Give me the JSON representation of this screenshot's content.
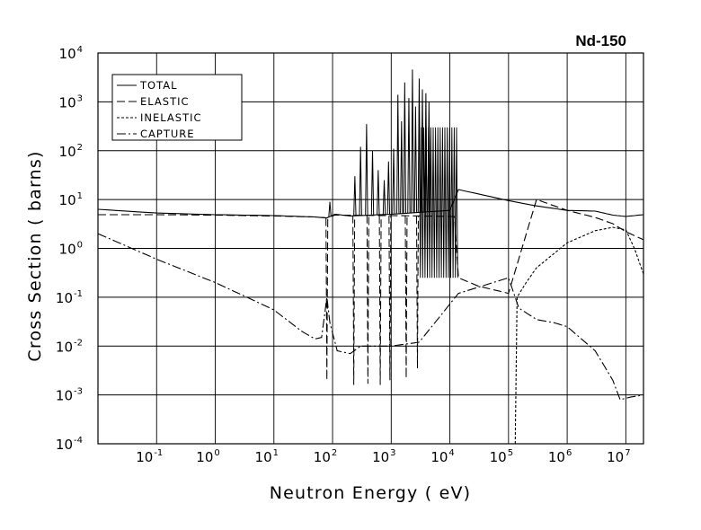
{
  "chart_data": {
    "type": "line",
    "title": "Nd-150",
    "xlabel": "Neutron Energy ( eV)",
    "ylabel": "Cross Section ( barns)",
    "x_scale": "log",
    "y_scale": "log",
    "xlim": [
      0.01,
      20000000
    ],
    "ylim": [
      0.0001,
      10000
    ],
    "grid": true,
    "legend_position": "top-left",
    "x_ticks": [
      {
        "value": 0.1,
        "base": "10",
        "exp": "-1"
      },
      {
        "value": 1,
        "base": "10",
        "exp": "0"
      },
      {
        "value": 10,
        "base": "10",
        "exp": "1"
      },
      {
        "value": 100,
        "base": "10",
        "exp": "2"
      },
      {
        "value": 1000,
        "base": "10",
        "exp": "3"
      },
      {
        "value": 10000,
        "base": "10",
        "exp": "4"
      },
      {
        "value": 100000,
        "base": "10",
        "exp": "5"
      },
      {
        "value": 1000000,
        "base": "10",
        "exp": "6"
      },
      {
        "value": 10000000,
        "base": "10",
        "exp": "7"
      }
    ],
    "y_ticks": [
      {
        "value": 0.0001,
        "base": "10",
        "exp": "-4"
      },
      {
        "value": 0.001,
        "base": "10",
        "exp": "-3"
      },
      {
        "value": 0.01,
        "base": "10",
        "exp": "-2"
      },
      {
        "value": 0.1,
        "base": "10",
        "exp": "-1"
      },
      {
        "value": 1,
        "base": "10",
        "exp": "0"
      },
      {
        "value": 10,
        "base": "10",
        "exp": "1"
      },
      {
        "value": 100,
        "base": "10",
        "exp": "2"
      },
      {
        "value": 1000,
        "base": "10",
        "exp": "3"
      },
      {
        "value": 10000,
        "base": "10",
        "exp": "4"
      }
    ],
    "series": [
      {
        "name": "TOTAL",
        "dash": "solid",
        "points": [
          [
            0.01,
            6.3
          ],
          [
            0.1,
            5.3
          ],
          [
            1,
            4.9
          ],
          [
            10,
            4.7
          ],
          [
            50,
            4.4
          ],
          [
            80,
            4.2
          ],
          [
            110,
            5.0
          ],
          [
            200,
            4.6
          ],
          [
            1000,
            5.0
          ],
          [
            10000,
            6.0
          ],
          [
            14000,
            16
          ],
          [
            100000,
            9.5
          ],
          [
            300000,
            7.4
          ],
          [
            1000000,
            6.0
          ],
          [
            3000000,
            5.8
          ],
          [
            6000000,
            4.8
          ],
          [
            10000000,
            4.5
          ],
          [
            20000000,
            4.9
          ]
        ],
        "resonances": [
          [
            90,
            9
          ],
          [
            240,
            30
          ],
          [
            300,
            120
          ],
          [
            380,
            350
          ],
          [
            480,
            100
          ],
          [
            600,
            40
          ],
          [
            760,
            25
          ],
          [
            900,
            60
          ],
          [
            1100,
            110
          ],
          [
            1300,
            1400
          ],
          [
            1500,
            400
          ],
          [
            1700,
            2500
          ],
          [
            2000,
            1200
          ],
          [
            2300,
            4600
          ],
          [
            2600,
            800
          ],
          [
            3000,
            3000
          ],
          [
            3400,
            1800
          ],
          [
            3900,
            1500
          ],
          [
            4400,
            1000
          ]
        ],
        "dense_band": {
          "x_range": [
            3000,
            14000
          ],
          "upper": 300,
          "lower": 0.25
        }
      },
      {
        "name": "ELASTIC",
        "dash": "long-dash",
        "points": [
          [
            0.01,
            4.9
          ],
          [
            0.1,
            4.9
          ],
          [
            1,
            4.8
          ],
          [
            10,
            4.6
          ],
          [
            50,
            4.4
          ],
          [
            80,
            4.2
          ],
          [
            110,
            4.8
          ],
          [
            1000,
            4.7
          ],
          [
            12000,
            4.5
          ],
          [
            14000,
            0.25
          ],
          [
            30000,
            0.17
          ],
          [
            100000,
            0.12
          ],
          [
            300000,
            10
          ],
          [
            1000000,
            6.0
          ],
          [
            3000000,
            4.3
          ],
          [
            6000000,
            3.2
          ],
          [
            10000000,
            2.2
          ],
          [
            20000000,
            1.5
          ]
        ],
        "dips": [
          [
            80,
            0.002
          ],
          [
            230,
            0.0016
          ],
          [
            400,
            0.0017
          ],
          [
            650,
            0.0016
          ],
          [
            950,
            0.002
          ],
          [
            1800,
            0.0022
          ],
          [
            2800,
            0.0035
          ]
        ]
      },
      {
        "name": "INELASTIC",
        "dash": "short-dash",
        "points": [
          [
            130000,
            0.0001
          ],
          [
            140000,
            0.1
          ],
          [
            200000,
            0.2
          ],
          [
            300000,
            0.4
          ],
          [
            1000000,
            1.3
          ],
          [
            3000000,
            2.3
          ],
          [
            6000000,
            2.7
          ],
          [
            10000000,
            2.4
          ],
          [
            14000000,
            1.0
          ],
          [
            20000000,
            0.3
          ]
        ]
      },
      {
        "name": "CAPTURE",
        "dash": "dash-dot",
        "points": [
          [
            0.01,
            2.0
          ],
          [
            0.1,
            0.6
          ],
          [
            1,
            0.2
          ],
          [
            10,
            0.055
          ],
          [
            30,
            0.02
          ],
          [
            50,
            0.014
          ],
          [
            65,
            0.015
          ],
          [
            80,
            0.1
          ],
          [
            90,
            0.03
          ],
          [
            120,
            0.008
          ],
          [
            200,
            0.007
          ],
          [
            300,
            0.01
          ],
          [
            1000,
            0.01
          ],
          [
            3000,
            0.012
          ],
          [
            14000,
            0.12
          ],
          [
            100000,
            0.25
          ],
          [
            150000,
            0.06
          ],
          [
            300000,
            0.035
          ],
          [
            600000,
            0.03
          ],
          [
            1000000,
            0.025
          ],
          [
            3000000,
            0.008
          ],
          [
            6000000,
            0.002
          ],
          [
            8000000,
            0.0008
          ],
          [
            12000000,
            0.0009
          ],
          [
            20000000,
            0.001
          ]
        ]
      }
    ]
  }
}
